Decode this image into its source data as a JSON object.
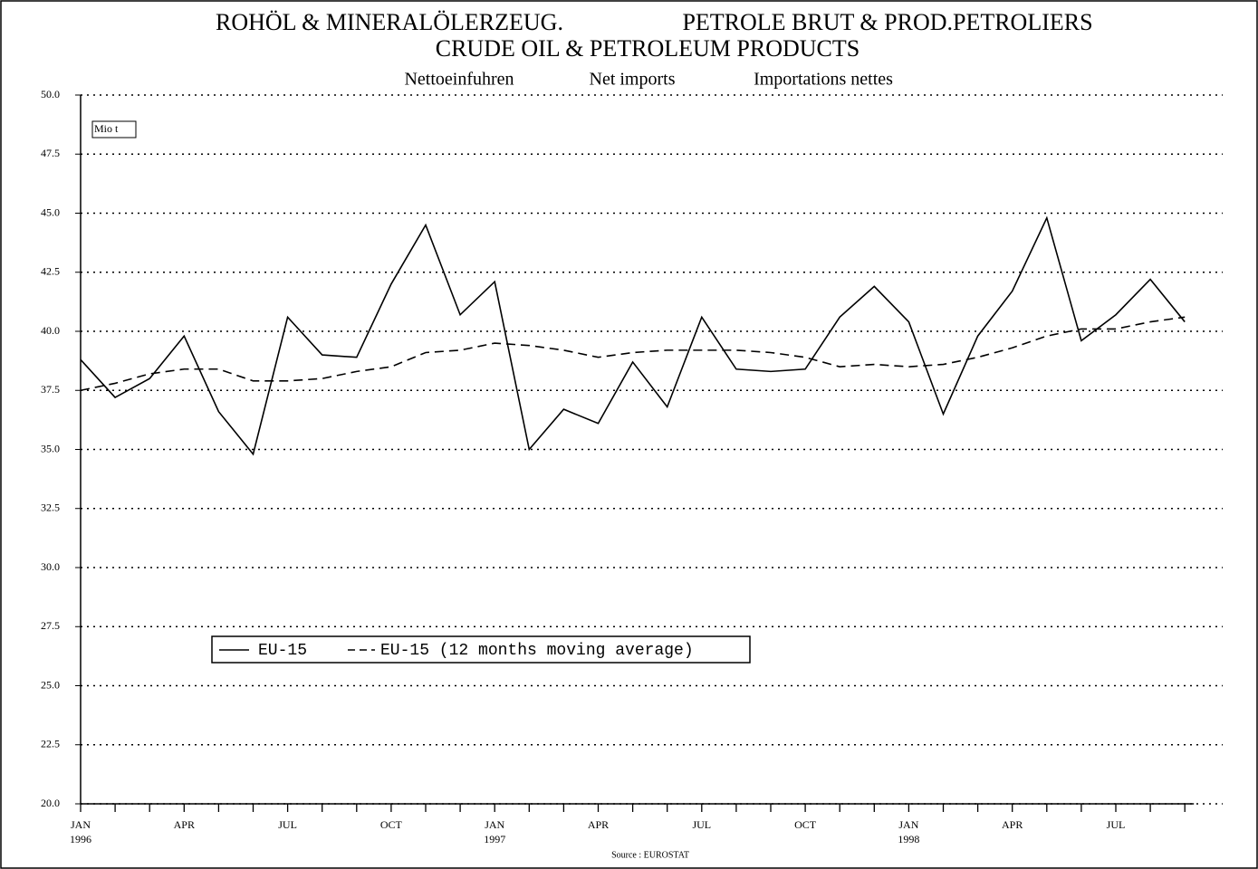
{
  "chart_data": {
    "type": "line",
    "titles": [
      "ROHÖL & MINERALÖLERZEUG.",
      "PETROLE BRUT & PROD.PETROLIERS",
      "CRUDE OIL & PETROLEUM PRODUCTS"
    ],
    "subtitles": [
      "Nettoeinfuhren",
      "Net imports",
      "Importations nettes"
    ],
    "unit_label": "Mio t",
    "source": "Source : EUROSTAT",
    "categories": [
      "JAN",
      null,
      null,
      "APR",
      null,
      null,
      "JUL",
      null,
      null,
      "OCT",
      null,
      null,
      "JAN",
      null,
      null,
      "APR",
      null,
      null,
      "JUL",
      null,
      null,
      "OCT",
      null,
      null,
      "JAN",
      null,
      null,
      "APR",
      null,
      null,
      "JUL",
      null,
      null
    ],
    "years": [
      "1996",
      "1997",
      "1998"
    ],
    "series": [
      {
        "name": "EU-15",
        "color": "#000000",
        "line_style": "solid",
        "values": [
          38.8,
          37.2,
          38.0,
          39.8,
          36.6,
          34.8,
          40.6,
          39.0,
          38.9,
          42.0,
          44.5,
          40.7,
          42.1,
          35.0,
          36.7,
          36.1,
          38.7,
          36.8,
          40.6,
          38.4,
          38.3,
          38.4,
          40.6,
          41.9,
          40.4,
          36.5,
          39.8,
          41.7,
          44.8,
          39.6,
          40.7,
          42.2,
          40.4
        ]
      },
      {
        "name": "EU-15 (12 months moving average)",
        "color": "#000000",
        "line_style": "dashed",
        "values": [
          37.5,
          37.8,
          38.2,
          38.4,
          38.4,
          37.9,
          37.9,
          38.0,
          38.3,
          38.5,
          39.1,
          39.2,
          39.5,
          39.4,
          39.2,
          38.9,
          39.1,
          39.2,
          39.2,
          39.2,
          39.1,
          38.9,
          38.5,
          38.6,
          38.5,
          38.6,
          38.9,
          39.3,
          39.8,
          40.1,
          40.1,
          40.4,
          40.6
        ]
      }
    ],
    "ylim": [
      20,
      50
    ],
    "yticks": [
      {
        "value": 20,
        "label": "20.0"
      },
      {
        "value": 22.5,
        "label": "22.5"
      },
      {
        "value": 25,
        "label": "25.0"
      },
      {
        "value": 27.5,
        "label": "27.5"
      },
      {
        "value": 30,
        "label": "30.0"
      },
      {
        "value": 32.5,
        "label": "32.5"
      },
      {
        "value": 35,
        "label": "35.0"
      },
      {
        "value": 37.5,
        "label": "37.5"
      },
      {
        "value": 40,
        "label": "40.0"
      },
      {
        "value": 42.5,
        "label": "42.5"
      },
      {
        "value": 45,
        "label": "45.0"
      },
      {
        "value": 47.5,
        "label": "47.5"
      },
      {
        "value": 50,
        "label": "50.0"
      }
    ],
    "grid": true
  }
}
